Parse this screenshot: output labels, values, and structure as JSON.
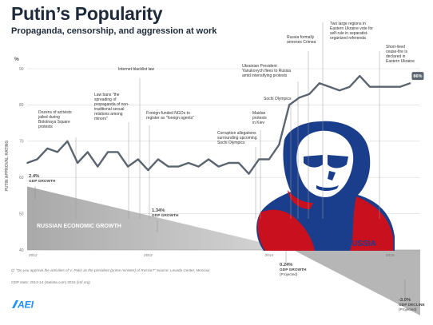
{
  "header": {
    "title": "Putin’s Popularity",
    "subtitle": "Propaganda, censorship, and aggression at work"
  },
  "footnote": "Q: \"Do you approve the activities of V. Putin as the president (prime minister) of Russia?\" Source: Levada Center, Moscow",
  "gdp_source": "GDP stats: 2013-14 (statista.com) 2015 (imf.org)",
  "logo": {
    "text": "AEI",
    "color": "#1e90ff"
  },
  "colors": {
    "line": "#5b6570",
    "gdp_fill": "#b6b6b6",
    "badge": "#5b6570",
    "poster_blue": "#1a3e8c",
    "poster_red": "#c8101e"
  },
  "poster": {
    "label": "RUSSIA"
  },
  "chart_data": {
    "type": "line",
    "ylabel": "PUTIN APPROVAL RATING",
    "yunit": "%",
    "ylim": [
      40,
      90
    ],
    "yticks": [
      40,
      50,
      60,
      70,
      80,
      90
    ],
    "xlim": [
      2012.0,
      2015.25
    ],
    "xticks": [
      {
        "label": "2012",
        "x": 2012.0
      },
      {
        "label": "2013",
        "x": 2013.0
      },
      {
        "label": "2014",
        "x": 2014.0
      },
      {
        "label": "2015",
        "x": 2015.0
      }
    ],
    "series": [
      {
        "x": [
          2012.0,
          2012.083,
          2012.167,
          2012.25,
          2012.333,
          2012.417,
          2012.5,
          2012.583,
          2012.667,
          2012.75,
          2012.833,
          2012.917,
          2013.0,
          2013.083,
          2013.167,
          2013.25,
          2013.333,
          2013.417,
          2013.5,
          2013.583,
          2013.667,
          2013.75,
          2013.833,
          2013.917,
          2014.0,
          2014.083,
          2014.167,
          2014.25,
          2014.333,
          2014.417,
          2014.5,
          2014.583,
          2014.667,
          2014.75,
          2014.833,
          2014.917,
          2015.0,
          2015.083,
          2015.167
        ],
        "values": [
          64,
          65,
          68,
          67,
          70,
          64,
          67,
          63,
          67,
          67,
          63,
          65,
          62,
          65,
          63,
          63,
          64,
          63,
          65,
          63,
          64,
          64,
          61,
          65,
          65,
          69,
          80,
          82,
          83,
          86,
          85,
          84,
          85,
          88,
          85,
          85,
          85,
          85,
          86
        ]
      }
    ],
    "end_label": "86%",
    "annotations": [
      {
        "text": "Dozens of activists jailed during Bolotnaya Square protests",
        "x": 2012.36
      },
      {
        "text": "Law bans \"the spreading of propaganda of non-traditional sexual relations among minors\"",
        "x": 2012.88
      },
      {
        "text": "Internet blacklist law",
        "x": 2012.95
      },
      {
        "text": "Foreign-funded NGOs to register as \"foreign agents\"",
        "x": 2013.1
      },
      {
        "text": "Corruption allegations surrounding upcoming Sochi Olympics",
        "x": 2013.58
      },
      {
        "text": "Maidan protests in Kiev",
        "x": 2013.9
      },
      {
        "text": "Sochi Olympics",
        "x": 2014.1
      },
      {
        "text": "Ukrainian President Yanukovych flees to Russia amid intensifying protests",
        "x": 2014.16
      },
      {
        "text": "Russia formally annexes Crimea",
        "x": 2014.24
      },
      {
        "text": "Two large regions in Eastern Ukraine vote for self-rule in separatist-organized referenda",
        "x": 2014.36
      },
      {
        "text": "Short-lived cease-fire is declared in Eastern Ukraine",
        "x": 2014.7
      }
    ],
    "gdp": {
      "title": "RUSSIAN ECONOMIC GROWTH",
      "labels": [
        {
          "value": "2.4%",
          "caption": "GDP GROWTH",
          "x": 2012.0
        },
        {
          "value": "1.34%",
          "caption": "GDP GROWTH",
          "x": 2013.0
        },
        {
          "value": "0.24%",
          "caption": "GDP GROWTH",
          "note": "(Projected)",
          "x": 2014.2
        },
        {
          "value": "-3.0%",
          "caption": "GDP DECLINE",
          "note": "(Projected)",
          "x": 2015.0
        }
      ]
    }
  }
}
